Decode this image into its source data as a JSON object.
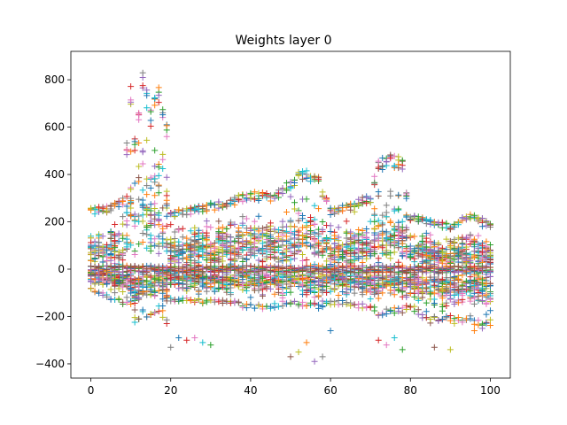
{
  "chart_data": {
    "type": "scatter",
    "title": "Weights layer 0",
    "xlabel": "",
    "ylabel": "",
    "xlim": [
      -5,
      105
    ],
    "ylim": [
      -460,
      920
    ],
    "xticks": [
      0,
      20,
      40,
      60,
      80,
      100
    ],
    "yticks": [
      -400,
      -200,
      0,
      200,
      400,
      600,
      800
    ],
    "xtick_labels": [
      "0",
      "20",
      "40",
      "60",
      "80",
      "100"
    ],
    "ytick_labels": [
      "−400",
      "−200",
      "0",
      "200",
      "400",
      "600",
      "800"
    ],
    "marker": "+",
    "grid": false,
    "legend": "none",
    "x_range": [
      0,
      100
    ],
    "series_count": 10,
    "colors": [
      "#1f77b4",
      "#ff7f0e",
      "#2ca02c",
      "#d62728",
      "#9467bd",
      "#8c564b",
      "#e377c2",
      "#7f7f7f",
      "#bcbd22",
      "#17becf"
    ],
    "envelope": {
      "x": [
        0,
        5,
        8,
        10,
        11,
        13,
        15,
        17,
        19,
        20,
        25,
        30,
        35,
        40,
        45,
        50,
        53,
        57,
        60,
        65,
        70,
        72,
        75,
        78,
        80,
        85,
        90,
        95,
        100
      ],
      "upper": [
        260,
        270,
        300,
        780,
        560,
        850,
        680,
        790,
        610,
        250,
        260,
        280,
        300,
        330,
        320,
        380,
        430,
        390,
        260,
        280,
        320,
        470,
        490,
        470,
        230,
        210,
        190,
        240,
        200
      ],
      "lower": [
        -90,
        -130,
        -150,
        -150,
        -230,
        -200,
        -210,
        -180,
        -230,
        -140,
        -140,
        -150,
        -150,
        -170,
        -170,
        -150,
        -160,
        -170,
        -150,
        -160,
        -170,
        -200,
        -190,
        -190,
        -170,
        -230,
        -230,
        -230,
        -250
      ]
    },
    "outliers": [
      {
        "x": 20,
        "y": -330
      },
      {
        "x": 22,
        "y": -290
      },
      {
        "x": 24,
        "y": -300
      },
      {
        "x": 26,
        "y": -290
      },
      {
        "x": 28,
        "y": -310
      },
      {
        "x": 30,
        "y": -320
      },
      {
        "x": 50,
        "y": -370
      },
      {
        "x": 52,
        "y": -350
      },
      {
        "x": 54,
        "y": -310
      },
      {
        "x": 56,
        "y": -390
      },
      {
        "x": 58,
        "y": -370
      },
      {
        "x": 60,
        "y": -260
      },
      {
        "x": 72,
        "y": -300
      },
      {
        "x": 74,
        "y": -320
      },
      {
        "x": 76,
        "y": -290
      },
      {
        "x": 78,
        "y": -340
      },
      {
        "x": 86,
        "y": -330
      },
      {
        "x": 90,
        "y": -340
      },
      {
        "x": 96,
        "y": -260
      },
      {
        "x": 98,
        "y": -250
      }
    ]
  }
}
